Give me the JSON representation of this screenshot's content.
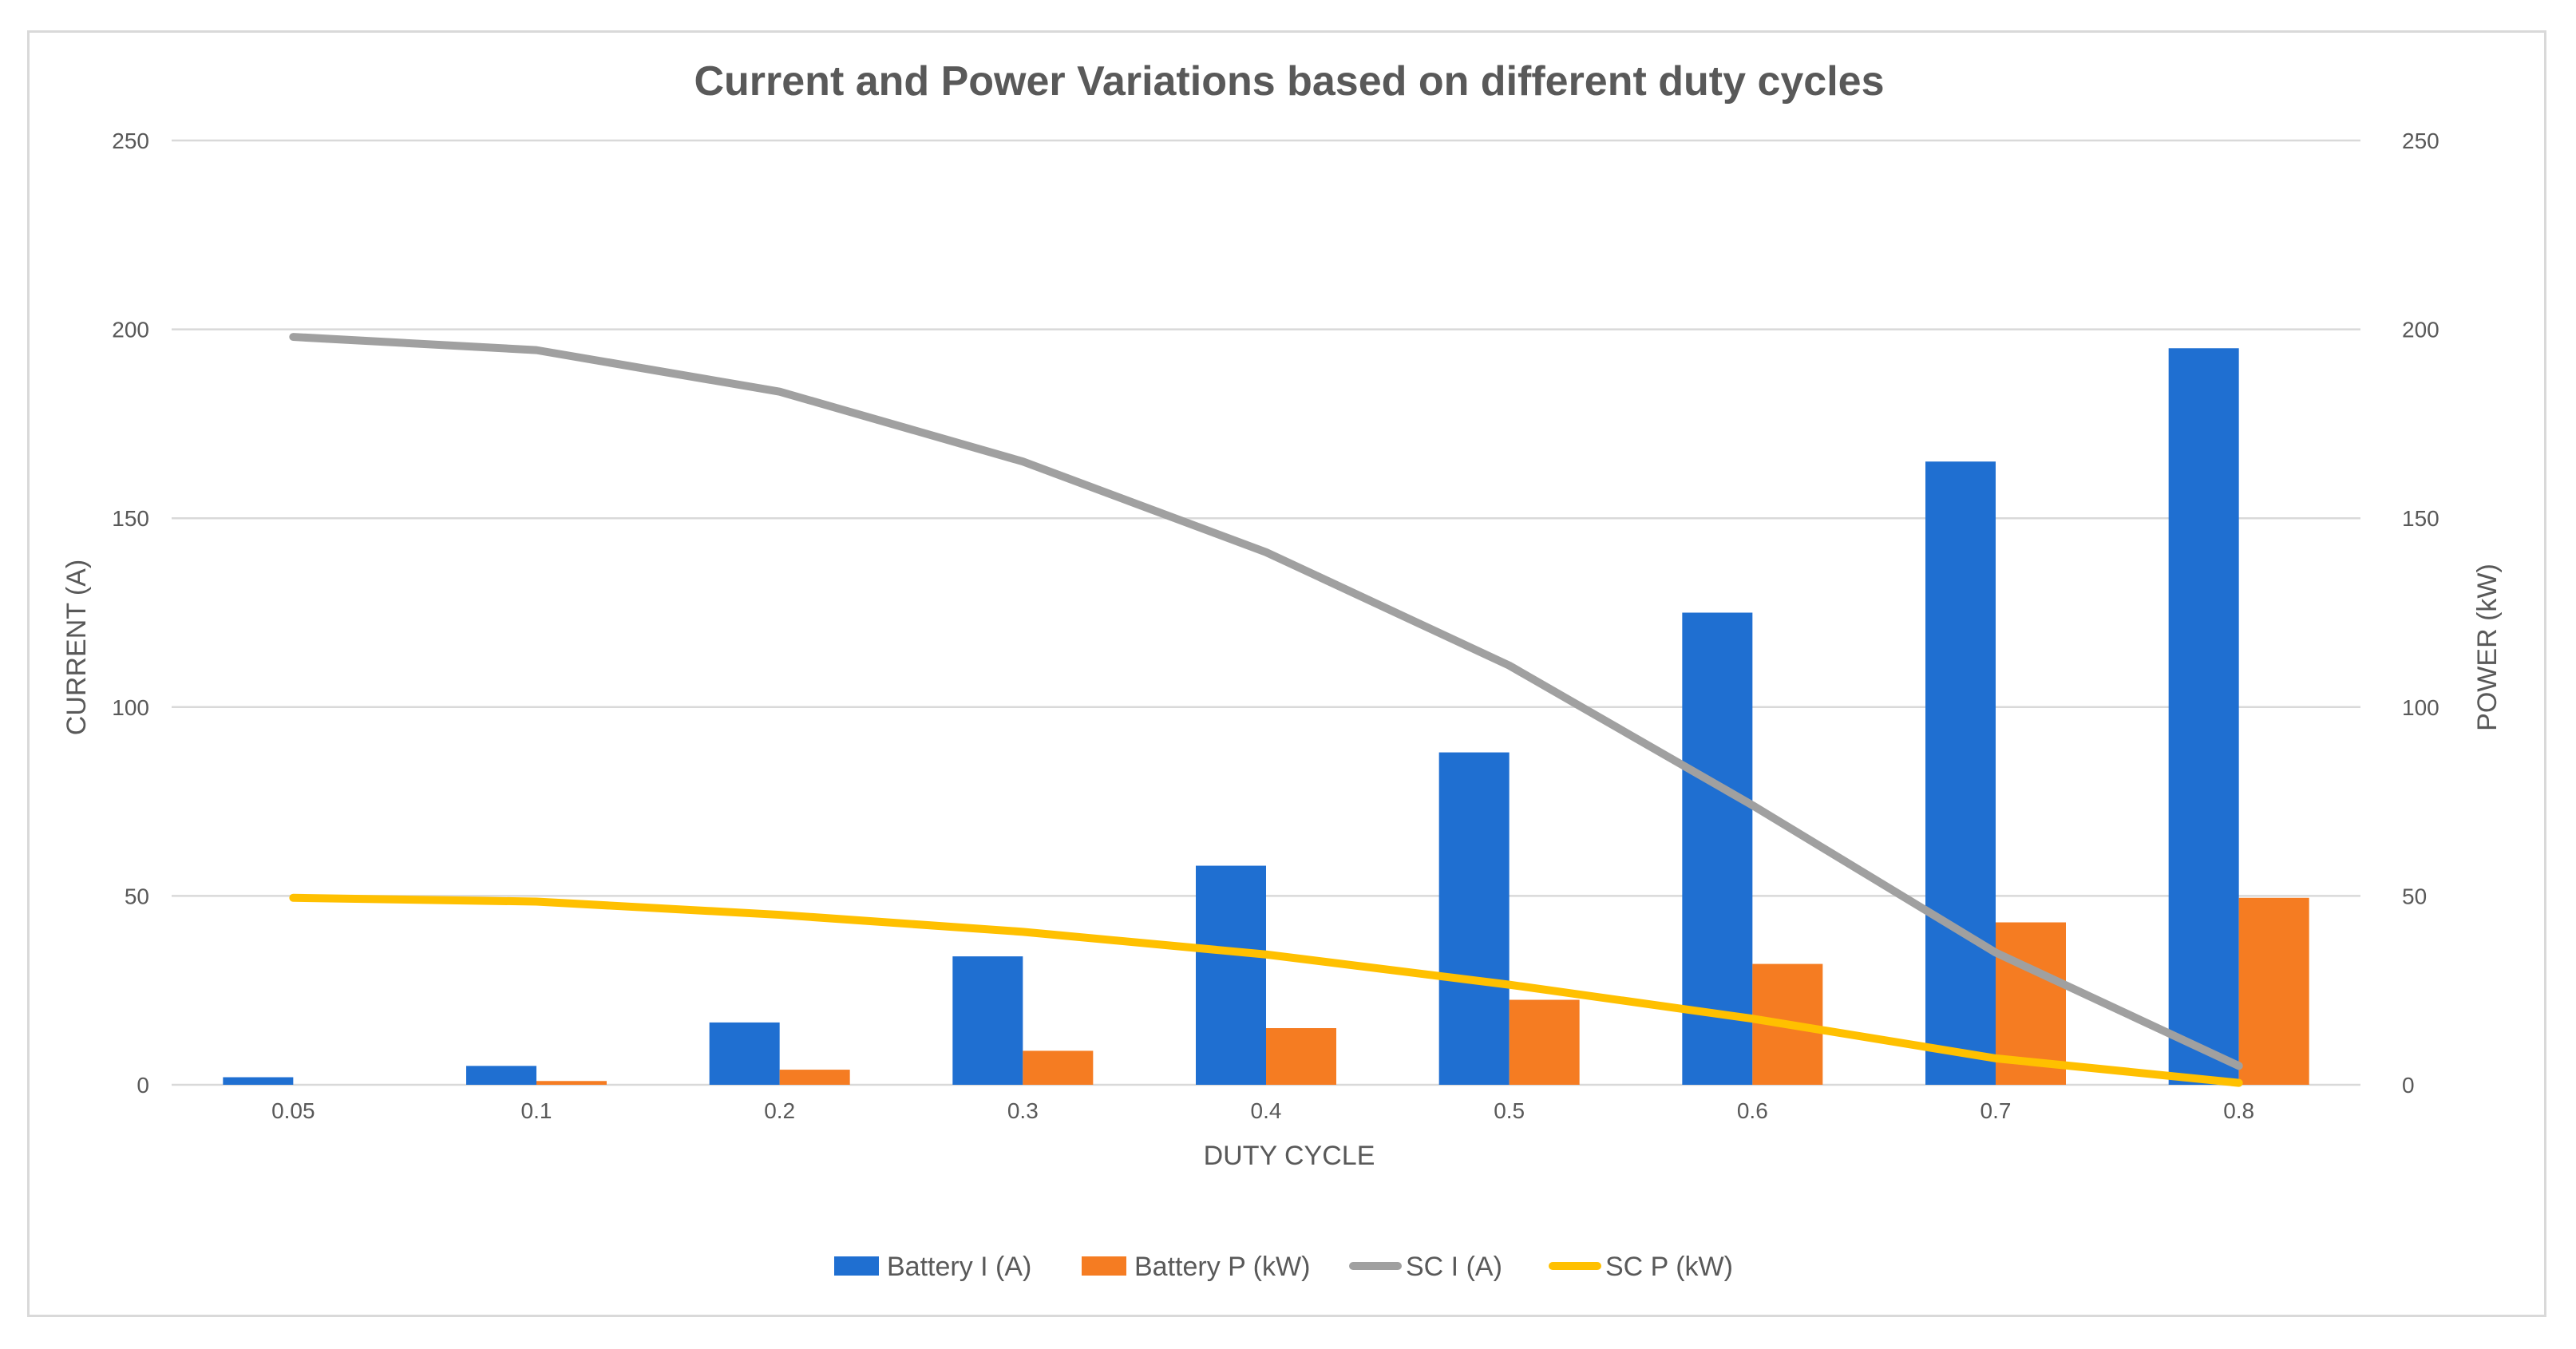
{
  "chart_data": {
    "type": "bar",
    "title": "Current and Power Variations based on different duty cycles",
    "xlabel": "DUTY CYCLE",
    "ylabel_left": "CURRENT (A)",
    "ylabel_right": "POWER (kW)",
    "ylim_left": [
      0,
      250
    ],
    "ylim_right": [
      0,
      250
    ],
    "yticks": [
      0,
      50,
      100,
      150,
      200,
      250
    ],
    "grid": true,
    "legend_position": "bottom",
    "categories": [
      "0.05",
      "0.1",
      "0.2",
      "0.3",
      "0.4",
      "0.5",
      "0.6",
      "0.7",
      "0.8"
    ],
    "series": [
      {
        "name": "Battery I (A)",
        "kind": "bar",
        "axis": "left",
        "color": "#1f6fd1",
        "values": [
          2,
          5,
          16.5,
          34,
          58,
          88,
          125,
          165,
          195
        ]
      },
      {
        "name": "Battery P (kW)",
        "kind": "bar",
        "axis": "right",
        "color": "#f57c22",
        "values": [
          0,
          1,
          4,
          9,
          15,
          22.5,
          32,
          43,
          49.5
        ]
      },
      {
        "name": "SC I (A)",
        "kind": "line",
        "axis": "left",
        "color": "#a0a0a0",
        "values": [
          198,
          194.5,
          183.5,
          165,
          141,
          111,
          74,
          35,
          5
        ]
      },
      {
        "name": "SC P (kW)",
        "kind": "line",
        "axis": "right",
        "color": "#ffc000",
        "values": [
          49.5,
          48.5,
          45,
          40.5,
          34.5,
          26.5,
          17.5,
          7,
          0.5
        ]
      }
    ]
  }
}
